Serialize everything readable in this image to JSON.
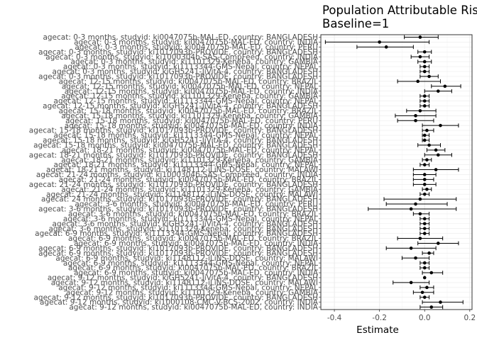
{
  "chart_data": {
    "type": "scatter",
    "subtype": "forest-plot-with-error-bars",
    "title_line1": "Population Attributable Risk",
    "title_line2": "Baseline=1",
    "xlabel": "Estimate",
    "ylabel": "",
    "xlim": [
      -0.46,
      0.21
    ],
    "xticks": [
      -0.4,
      -0.2,
      0.0,
      0.2
    ],
    "xtick_labels": [
      "-0.4",
      "-0.2",
      "0.0",
      "0.2"
    ],
    "grid": true,
    "legend": "none",
    "colors": {
      "point": "#000000",
      "panel_border": "#333333",
      "grid_major": "#ebebeb",
      "grid_minor": "#f5f5f5"
    },
    "rows": [
      {
        "label": "agecat: 9-12 months, studyid: ki0047075b-MAL-ED, country: INDIA",
        "est": 0.03,
        "lo": -0.02,
        "hi": 0.08
      },
      {
        "label": "agecat: 9-12 months, studyid: ki1000108-CMC-V-BCS-2002, country: INDIA",
        "est": 0.07,
        "lo": -0.01,
        "hi": 0.17
      },
      {
        "label": "agecat: 9-12 months, studyid: ki1017093b-PROVIDE, country: BANGLADESH",
        "est": 0.0,
        "lo": -0.02,
        "hi": 0.02
      },
      {
        "label": "agecat: 9-12 months, studyid: ki1101329-Keneba, country: GAMBIA",
        "est": -0.01,
        "lo": -0.05,
        "hi": 0.04
      },
      {
        "label": "agecat: 9-12 months, studyid: ki1113344-GMS-Nepal, country: NEPAL",
        "est": 0.01,
        "lo": -0.02,
        "hi": 0.04
      },
      {
        "label": "agecat: 9-12 months, studyid: ki1148112-iLiNS-DOSE, country: MALAWI",
        "est": -0.06,
        "lo": -0.14,
        "hi": 0.02
      },
      {
        "label": "agecat: 9-12 months, studyid: kiGH5241-JiVitA-4, country: BANGLADESH",
        "est": 0.0,
        "lo": 0.0,
        "hi": 0.0
      },
      {
        "label": "agecat: 6-9 months, studyid: ki0047075b-MAL-ED, country: INDIA",
        "est": 0.03,
        "lo": -0.01,
        "hi": 0.08
      },
      {
        "label": "agecat: 6-9 months, studyid: ki0047075b-MAL-ED, country: BRAZIL",
        "est": 0.0,
        "lo": -0.02,
        "hi": 0.02
      },
      {
        "label": "agecat: 6-9 months, studyid: ki1113344-GMS-Nepal, country: NEPAL",
        "est": 0.0,
        "lo": -0.02,
        "hi": 0.02
      },
      {
        "label": "agecat: 6-9 months, studyid: ki1148112-iLiNS-DOSE, country: MALAWI",
        "est": -0.04,
        "lo": -0.1,
        "hi": 0.02
      },
      {
        "label": "agecat: 6-9 months, studyid: ki1017093b-PROVIDE, country: BANGLADESH",
        "est": 0.02,
        "lo": -0.01,
        "hi": 0.04
      },
      {
        "label": "agecat: 6-9 months, studyid: ki1017093b-PROVIDE, country: BANGLADESH",
        "est": -0.06,
        "lo": -0.17,
        "hi": 0.05
      },
      {
        "label": "agecat: 6-9 months, studyid: ki0047075b-MAL-ED, country: INDIA",
        "est": 0.06,
        "lo": -0.03,
        "hi": 0.15
      },
      {
        "label": "agecat: 6-9 months, studyid: ki0047075b-MAL-ED, country: BRAZIL",
        "est": -0.02,
        "lo": -0.12,
        "hi": 0.08
      },
      {
        "label": "agecat: 6-9 months, studyid: ki1113344-GMS-Nepal, country: BANGLADESH",
        "est": 0.0,
        "lo": -0.02,
        "hi": 0.02
      },
      {
        "label": "agecat: 3-6 months, studyid: ki1101329-Keneba, country: BANGLADESH",
        "est": 0.0,
        "lo": -0.02,
        "hi": 0.02
      },
      {
        "label": "agecat: 3-6 months, studyid: kiGH5241-JiVitA-4, country: BANGLADESH",
        "est": 0.0,
        "lo": -0.02,
        "hi": 0.02
      },
      {
        "label": "agecat: 3-6 months, studyid: ki1113344-GMS-Nepal, country: NEPAL",
        "est": 0.0,
        "lo": -0.02,
        "hi": 0.02
      },
      {
        "label": "agecat: 3-6 months, studyid: ki0047075b-MAL-ED, country: BRAZIL",
        "est": -0.02,
        "lo": -0.05,
        "hi": 0.02
      },
      {
        "label": "agecat: 3-6 months, studyid: ki1017093b-PROVIDE, country: BANGLADESH",
        "est": -0.06,
        "lo": -0.25,
        "hi": 0.14
      },
      {
        "label": "agecat: 3-6 months, studyid: ki0047075b-MAL-ED, country: PERU",
        "est": -0.04,
        "lo": -0.17,
        "hi": 0.1
      },
      {
        "label": "agecat: 24 months, studyid: ki1017093b-PROVIDE, country: BANGLADESH",
        "est": -0.02,
        "lo": -0.18,
        "hi": 0.14
      },
      {
        "label": "agecat: 21-24 months, studyid: ki1148112-iLiNS-DOSE, country: MALAWI",
        "est": 0.0,
        "lo": -0.02,
        "hi": 0.02
      },
      {
        "label": "agecat: 21-24 months, studyid: ki1101329-Keneba, country: GAMBIA",
        "est": 0.01,
        "lo": -0.01,
        "hi": 0.03
      },
      {
        "label": "agecat: 21-24 months, studyid: ki1017093b-PROVIDE, country: BANGLADESH",
        "est": 0.0,
        "lo": -0.05,
        "hi": 0.05
      },
      {
        "label": "agecat: 21-24 months, studyid: ki0047075b-MAL-ED, country: BRAZIL",
        "est": 0.0,
        "lo": -0.05,
        "hi": 0.04
      },
      {
        "label": "agecat: 21-24 months, studyid: ki1000304b-SAS-CompFeed, country: INDIA",
        "est": 0.0,
        "lo": -0.05,
        "hi": 0.05
      },
      {
        "label": "agecat: 18-21 months, studyid: ki1148112-iLiNS-DOSE, country: MALAWI",
        "est": 0.05,
        "lo": -0.05,
        "hi": 0.15
      },
      {
        "label": "agecat: 18-21 months, studyid: ki1113344-GMS-Nepal, country: NEPAL",
        "est": 0.0,
        "lo": -0.02,
        "hi": 0.02
      },
      {
        "label": "agecat: 18-21 months, studyid: ki1101329-Keneba, country: GAMBIA",
        "est": 0.01,
        "lo": -0.01,
        "hi": 0.03
      },
      {
        "label": "agecat: 18-21 months, studyid: ki1017093b-PROVIDE, country: BANGLADESH",
        "est": 0.06,
        "lo": 0.0,
        "hi": 0.12
      },
      {
        "label": "agecat: 18-21 months, studyid: ki0047075b-MAL-ED, country: NEPAL",
        "est": 0.05,
        "lo": 0.01,
        "hi": 0.09
      },
      {
        "label": "agecat: 15-18 months, studyid: ki0047075b-MAL-ED, country: BANGLADESH",
        "est": 0.02,
        "lo": -0.03,
        "hi": 0.07
      },
      {
        "label": "agecat: 15-18 months, studyid: kiGH5241-JiVitA-4, country: BANGLADESH",
        "est": 0.0,
        "lo": -0.01,
        "hi": 0.02
      },
      {
        "label": "agecat: 15-18 months, studyid: ki1113344-GMS-Nepal, country: NEPAL",
        "est": 0.0,
        "lo": -0.01,
        "hi": 0.02
      },
      {
        "label": "agecat: 15-18 months, studyid: ki1017093b-PROVIDE, country: BANGLADESH",
        "est": 0.01,
        "lo": -0.01,
        "hi": 0.04
      },
      {
        "label": "agecat: 15-18 months, studyid: ki0047075b-MAL-ED, country: INDIA",
        "est": 0.07,
        "lo": -0.01,
        "hi": 0.15
      },
      {
        "label": "agecat: 15-18 months, studyid: ki0047075b-MAL-ED, country: PERU",
        "est": -0.04,
        "lo": -0.12,
        "hi": 0.04
      },
      {
        "label": "agecat: 15-18 months, studyid: ki1101329-Keneba, country: GAMBIA",
        "est": -0.04,
        "lo": -0.13,
        "hi": 0.05
      },
      {
        "label": "agecat: 15-18 months, studyid: ki0047075b-MAL-ED, country: BRAZIL",
        "est": -0.02,
        "lo": -0.08,
        "hi": 0.05
      },
      {
        "label": "agecat: 12-15 months, studyid: kiGH5241-JiVitA-4, country: BANGLADESH",
        "est": 0.0,
        "lo": -0.02,
        "hi": 0.02
      },
      {
        "label": "agecat: 12-15 months, studyid: ki1113344-GMS-Nepal, country: NEPAL",
        "est": 0.0,
        "lo": -0.02,
        "hi": 0.02
      },
      {
        "label": "agecat: 12-15 months, studyid: ki1101329-Keneba, country: GAMBIA",
        "est": 0.0,
        "lo": -0.02,
        "hi": 0.02
      },
      {
        "label": "agecat: 12-15 months, studyid: ki0047075b-MAL-ED, country: INDIA",
        "est": 0.06,
        "lo": 0.0,
        "hi": 0.12
      },
      {
        "label": "agecat: 12-15 months, studyid: ki0047075b-MAL-ED, country: NEPAL",
        "est": 0.09,
        "lo": 0.03,
        "hi": 0.16
      },
      {
        "label": "agecat: 12-15 months, studyid: ki0047075b-MAL-ED, country: BRAZIL",
        "est": -0.03,
        "lo": -0.12,
        "hi": 0.07
      },
      {
        "label": "agecat: 0-3 months, studyid: ki1017093b-PROVIDE, country: BANGLADESH",
        "est": 0.02,
        "lo": -0.02,
        "hi": 0.06
      },
      {
        "label": "agecat: 0-3 months, studyid: kiGH5241-JiVitA-4, country: BANGLADESH",
        "est": 0.0,
        "lo": -0.02,
        "hi": 0.02
      },
      {
        "label": "agecat: 0-3 months, studyid: ki1113344-GMS-Nepal, country: NEPAL",
        "est": 0.0,
        "lo": -0.02,
        "hi": 0.02
      },
      {
        "label": "agecat: 0-3 months, studyid: ki1101329-Keneba, country: GAMBIA",
        "est": 0.0,
        "lo": -0.03,
        "hi": 0.03
      },
      {
        "label": "agecat: 0-3 months, studyid: ki1000304b-SAS-CompFeed, country: INDIA",
        "est": -0.02,
        "lo": -0.06,
        "hi": 0.02
      },
      {
        "label": "agecat: 0-3 months, studyid: ki1017093b-PROVIDE, country: BANGLADESH",
        "est": 0.0,
        "lo": -0.03,
        "hi": 0.03
      },
      {
        "label": "agecat: 0-3 months, studyid: ki0047075b-MAL-ED, country: PERU",
        "est": -0.17,
        "lo": -0.3,
        "hi": -0.05
      },
      {
        "label": "agecat: 0-3 months, studyid: ki0047075b-MAL-ED, country: INDIA",
        "est": -0.2,
        "lo": -0.44,
        "hi": 0.02
      },
      {
        "label": "agecat: 0-3 months, studyid: ki0047075b-MAL-ED, country: BANGLADESH",
        "est": -0.02,
        "lo": -0.09,
        "hi": 0.06
      }
    ]
  }
}
